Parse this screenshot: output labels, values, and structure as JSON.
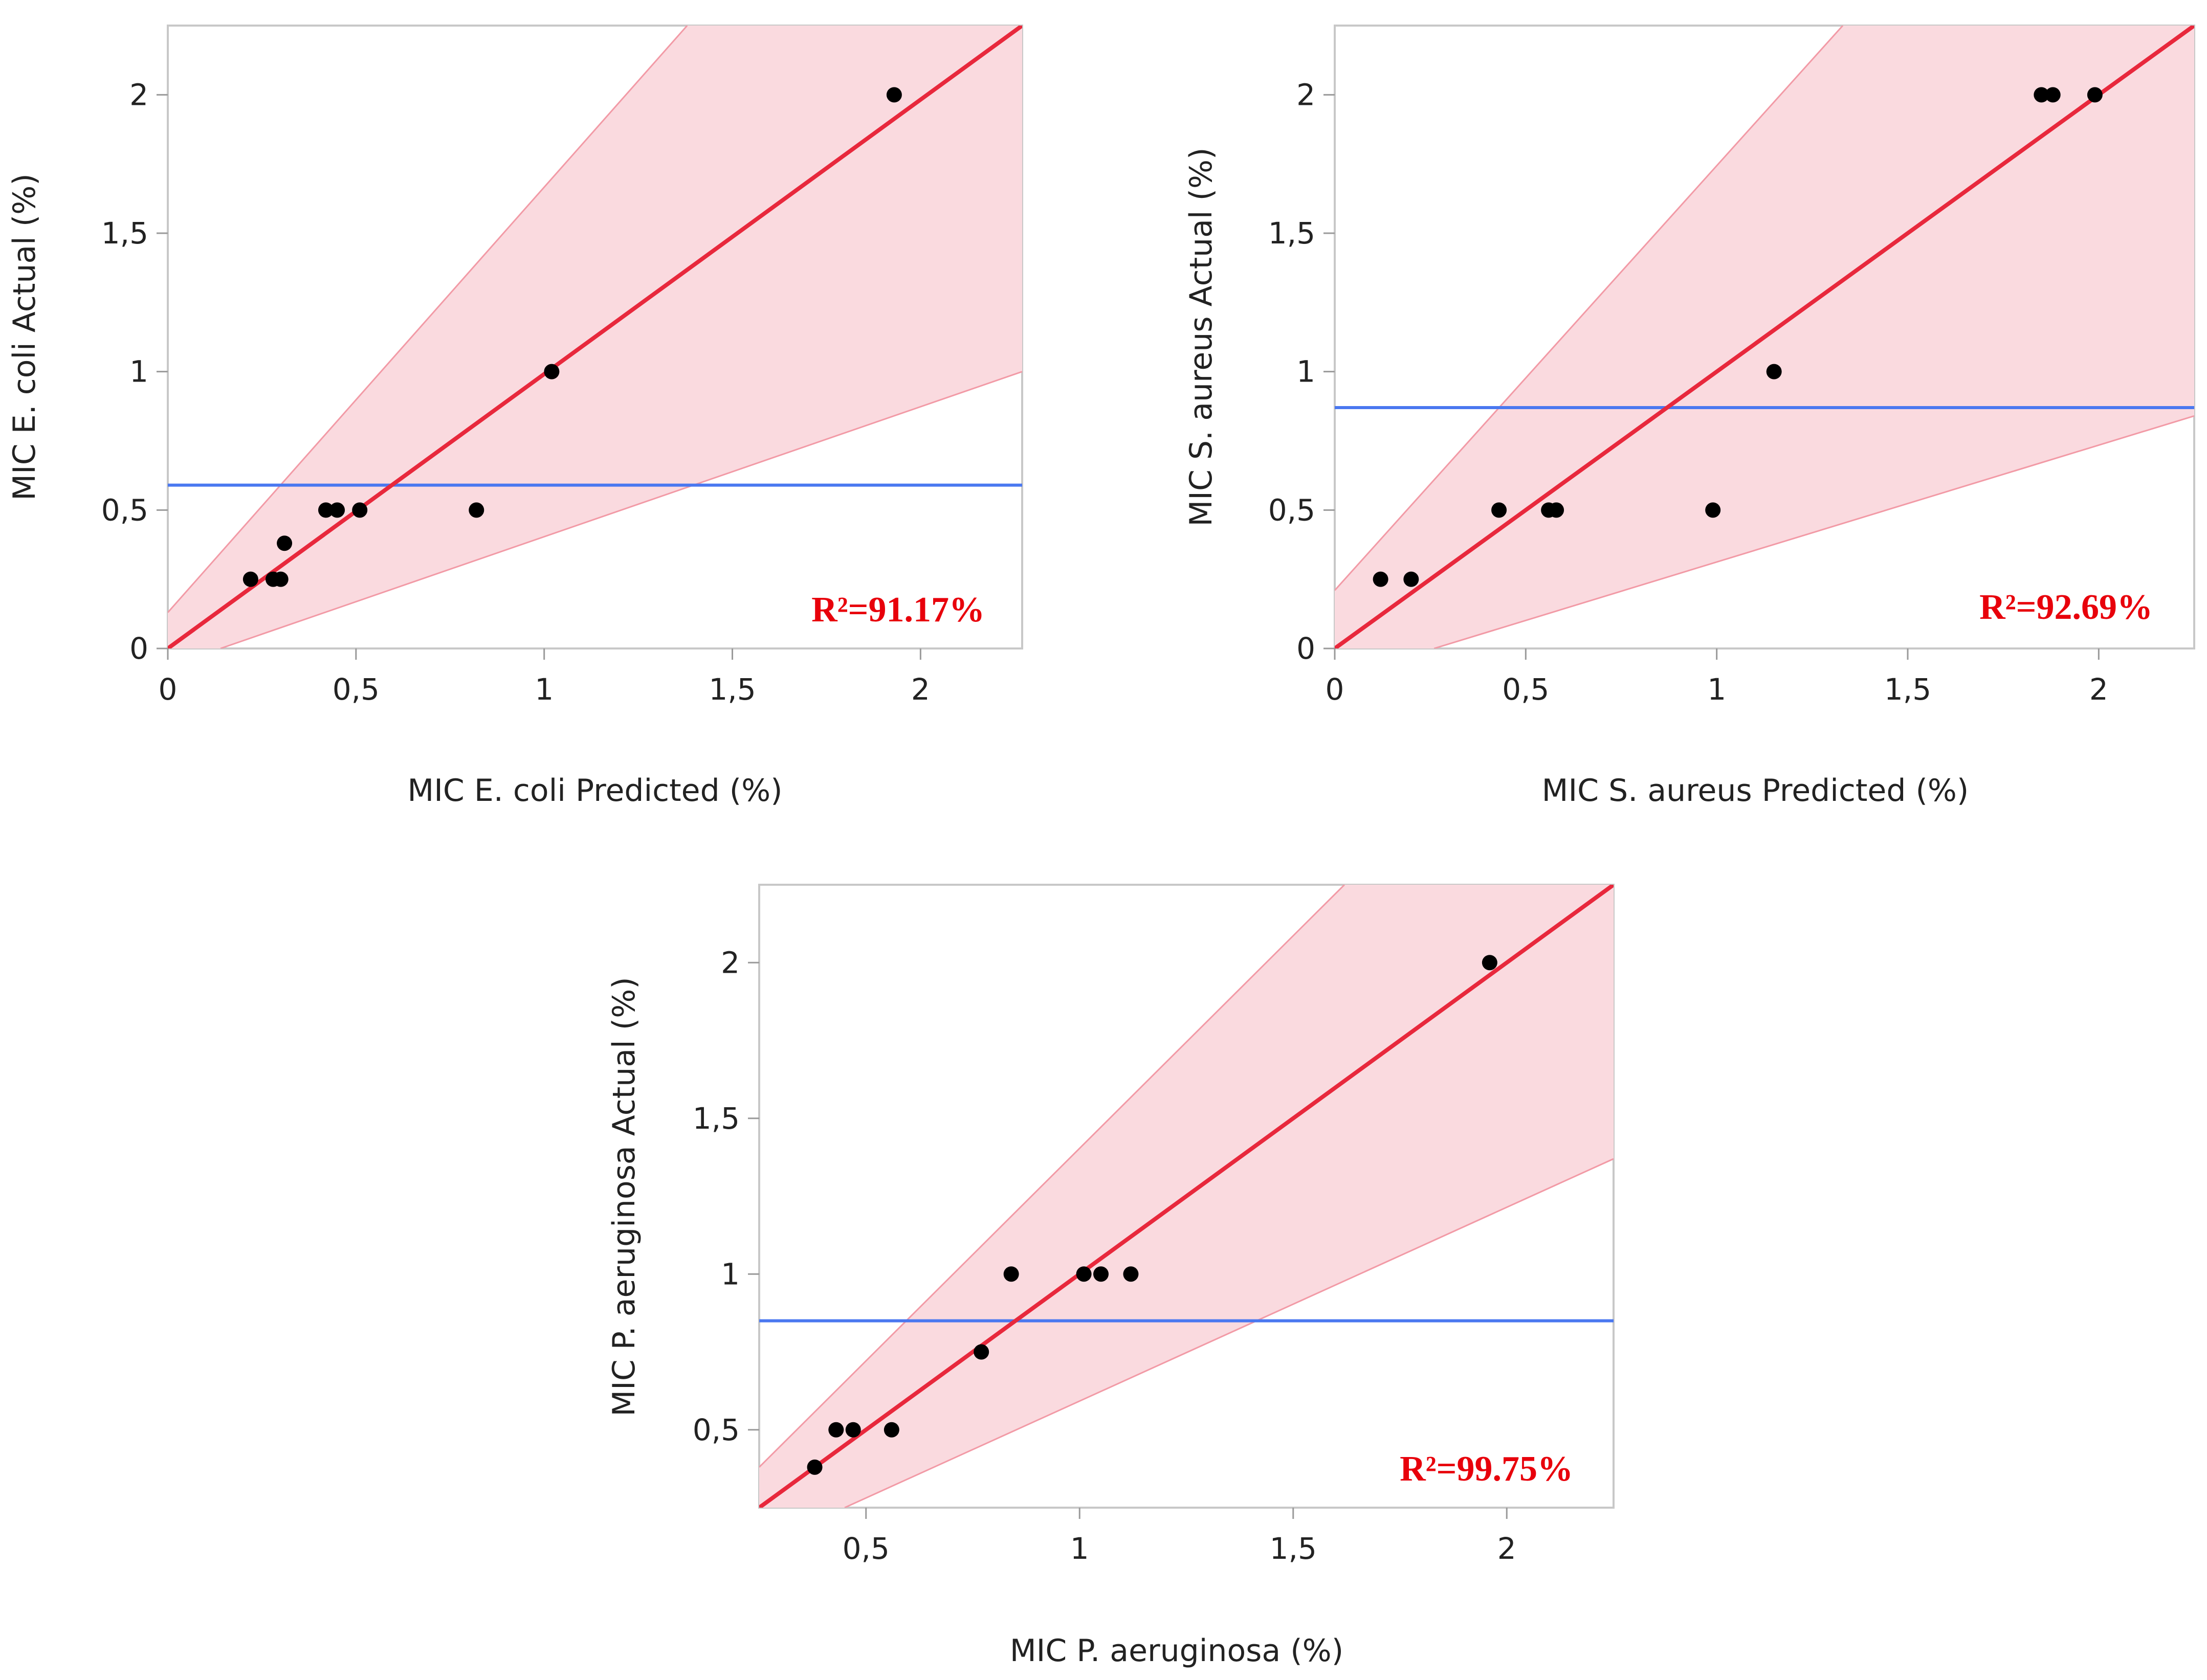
{
  "chart_data": [
    {
      "type": "scatter",
      "xlabel": "MIC E. coli Predicted (%)",
      "ylabel": "MIC E. coli Actual (%)",
      "xlim": [
        0,
        2.27
      ],
      "ylim": [
        0,
        2.25
      ],
      "xticks": [
        "0",
        "0,5",
        "1",
        "1,5",
        "2"
      ],
      "xtick_values": [
        0,
        0.5,
        1,
        1.5,
        2
      ],
      "yticks": [
        "0",
        "0,5",
        "1",
        "1,5",
        "2"
      ],
      "ytick_values": [
        0,
        0.5,
        1,
        1.5,
        2
      ],
      "mean_line": 0.59,
      "fit_line": [
        [
          0,
          0
        ],
        [
          2.27,
          2.25
        ]
      ],
      "confidence_band": {
        "upper": [
          [
            0,
            0.13
          ],
          [
            1.38,
            2.25
          ]
        ],
        "lower": [
          [
            0.14,
            0
          ],
          [
            2.27,
            1.0
          ]
        ]
      },
      "points": [
        {
          "x": 0.22,
          "y": 0.25
        },
        {
          "x": 0.28,
          "y": 0.25
        },
        {
          "x": 0.3,
          "y": 0.25
        },
        {
          "x": 0.31,
          "y": 0.38
        },
        {
          "x": 0.42,
          "y": 0.5
        },
        {
          "x": 0.45,
          "y": 0.5
        },
        {
          "x": 0.51,
          "y": 0.5
        },
        {
          "x": 0.82,
          "y": 0.5
        },
        {
          "x": 1.02,
          "y": 1.0
        },
        {
          "x": 1.93,
          "y": 2.0
        }
      ],
      "annotation": "R²=91.17%",
      "colors": {
        "fit": "#e8283c",
        "band": "#fadadf",
        "band_edge": "#f29aa6",
        "mean": "#4a78f0",
        "point": "#000000"
      }
    },
    {
      "type": "scatter",
      "xlabel": "MIC S. aureus Predicted (%)",
      "ylabel": "MIC S. aureus Actual (%)",
      "xlim": [
        0,
        2.25
      ],
      "ylim": [
        0,
        2.25
      ],
      "xticks": [
        "0",
        "0,5",
        "1",
        "1,5",
        "2"
      ],
      "xtick_values": [
        0,
        0.5,
        1,
        1.5,
        2
      ],
      "yticks": [
        "0",
        "0,5",
        "1",
        "1,5",
        "2"
      ],
      "ytick_values": [
        0,
        0.5,
        1,
        1.5,
        2
      ],
      "mean_line": 0.87,
      "fit_line": [
        [
          0,
          0
        ],
        [
          2.25,
          2.25
        ]
      ],
      "confidence_band": {
        "upper": [
          [
            0,
            0.21
          ],
          [
            1.33,
            2.25
          ]
        ],
        "lower": [
          [
            0.26,
            0
          ],
          [
            2.25,
            0.84
          ]
        ]
      },
      "points": [
        {
          "x": 0.12,
          "y": 0.25
        },
        {
          "x": 0.2,
          "y": 0.25
        },
        {
          "x": 0.43,
          "y": 0.5
        },
        {
          "x": 0.56,
          "y": 0.5
        },
        {
          "x": 0.58,
          "y": 0.5
        },
        {
          "x": 0.99,
          "y": 0.5
        },
        {
          "x": 1.15,
          "y": 1.0
        },
        {
          "x": 1.85,
          "y": 2.0
        },
        {
          "x": 1.88,
          "y": 2.0
        },
        {
          "x": 1.99,
          "y": 2.0
        }
      ],
      "annotation": "R²=92.69%",
      "colors": {
        "fit": "#e8283c",
        "band": "#fadadf",
        "band_edge": "#f29aa6",
        "mean": "#4a78f0",
        "point": "#000000"
      }
    },
    {
      "type": "scatter",
      "xlabel": "MIC P. aeruginosa (%)",
      "ylabel": "MIC P. aeruginosa Actual (%)",
      "xlim": [
        0.25,
        2.25
      ],
      "ylim": [
        0.25,
        2.25
      ],
      "xticks": [
        "0,5",
        "1",
        "1,5",
        "2"
      ],
      "xtick_values": [
        0.5,
        1,
        1.5,
        2
      ],
      "yticks": [
        "0,5",
        "1",
        "1,5",
        "2"
      ],
      "ytick_values": [
        0.5,
        1,
        1.5,
        2
      ],
      "mean_line": 0.85,
      "fit_line": [
        [
          0.25,
          0.25
        ],
        [
          2.25,
          2.25
        ]
      ],
      "confidence_band": {
        "upper": [
          [
            0.25,
            0.38
          ],
          [
            1.62,
            2.25
          ]
        ],
        "lower": [
          [
            0.45,
            0.25
          ],
          [
            2.25,
            1.37
          ]
        ]
      },
      "points": [
        {
          "x": 0.38,
          "y": 0.38
        },
        {
          "x": 0.43,
          "y": 0.5
        },
        {
          "x": 0.47,
          "y": 0.5
        },
        {
          "x": 0.56,
          "y": 0.5
        },
        {
          "x": 0.77,
          "y": 0.75
        },
        {
          "x": 0.84,
          "y": 1.0
        },
        {
          "x": 1.01,
          "y": 1.0
        },
        {
          "x": 1.05,
          "y": 1.0
        },
        {
          "x": 1.12,
          "y": 1.0
        },
        {
          "x": 1.96,
          "y": 2.0
        }
      ],
      "annotation": "R²=99.75%",
      "colors": {
        "fit": "#e8283c",
        "band": "#fadadf",
        "band_edge": "#f29aa6",
        "mean": "#4a78f0",
        "point": "#000000"
      }
    }
  ]
}
